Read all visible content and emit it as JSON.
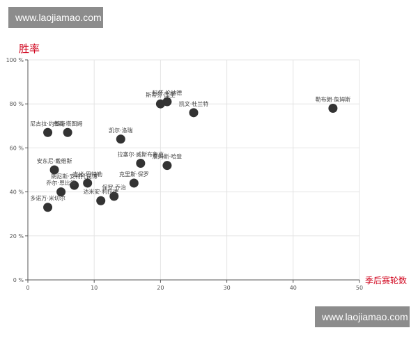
{
  "watermarks": {
    "top": "www.laojiamao.com",
    "bottom": "www.laojiamao.com"
  },
  "colors": {
    "axis_title": "#d0021b",
    "point": "#333333",
    "grid": "#e4e4e4",
    "axis": "#555555",
    "label": "#444444"
  },
  "chart_data": {
    "type": "scatter",
    "title": "",
    "xlabel": "季后赛轮数",
    "ylabel": "胜率",
    "xlim": [
      0,
      50
    ],
    "ylim": [
      0,
      100
    ],
    "x_ticks": [
      "0",
      "10",
      "20",
      "30",
      "40",
      "50"
    ],
    "y_ticks": [
      "0 %",
      "20 %",
      "40 %",
      "60 %",
      "80 %",
      "100 %"
    ],
    "grid": true,
    "points": [
      {
        "name": "勒布朗·詹姆斯",
        "x": 46,
        "y": 78
      },
      {
        "name": "凯文·杜兰特",
        "x": 25,
        "y": 76
      },
      {
        "name": "科怀·伦纳德",
        "x": 21,
        "y": 81
      },
      {
        "name": "斯蒂芬·库里",
        "x": 20,
        "y": 80
      },
      {
        "name": "尼古拉·约基奇",
        "x": 3,
        "y": 67
      },
      {
        "name": "杰森·塔图姆",
        "x": 6,
        "y": 67
      },
      {
        "name": "凯尔·洛瑞",
        "x": 14,
        "y": 64
      },
      {
        "name": "拉塞尔·威斯布鲁克",
        "x": 17,
        "y": 53
      },
      {
        "name": "詹姆斯·哈登",
        "x": 21,
        "y": 52
      },
      {
        "name": "克里斯·保罗",
        "x": 16,
        "y": 44
      },
      {
        "name": "安东尼·戴维斯",
        "x": 4,
        "y": 50
      },
      {
        "name": "吉米·巴特勒",
        "x": 9,
        "y": 44
      },
      {
        "name": "朗尼斯·安特托昆博",
        "x": 7,
        "y": 43
      },
      {
        "name": "乔尔·恩比德",
        "x": 5,
        "y": 40
      },
      {
        "name": "达米安·利拉德",
        "x": 11,
        "y": 36
      },
      {
        "name": "保罗·乔治",
        "x": 13,
        "y": 38
      },
      {
        "name": "多诺万·米切尔",
        "x": 3,
        "y": 33
      }
    ]
  }
}
